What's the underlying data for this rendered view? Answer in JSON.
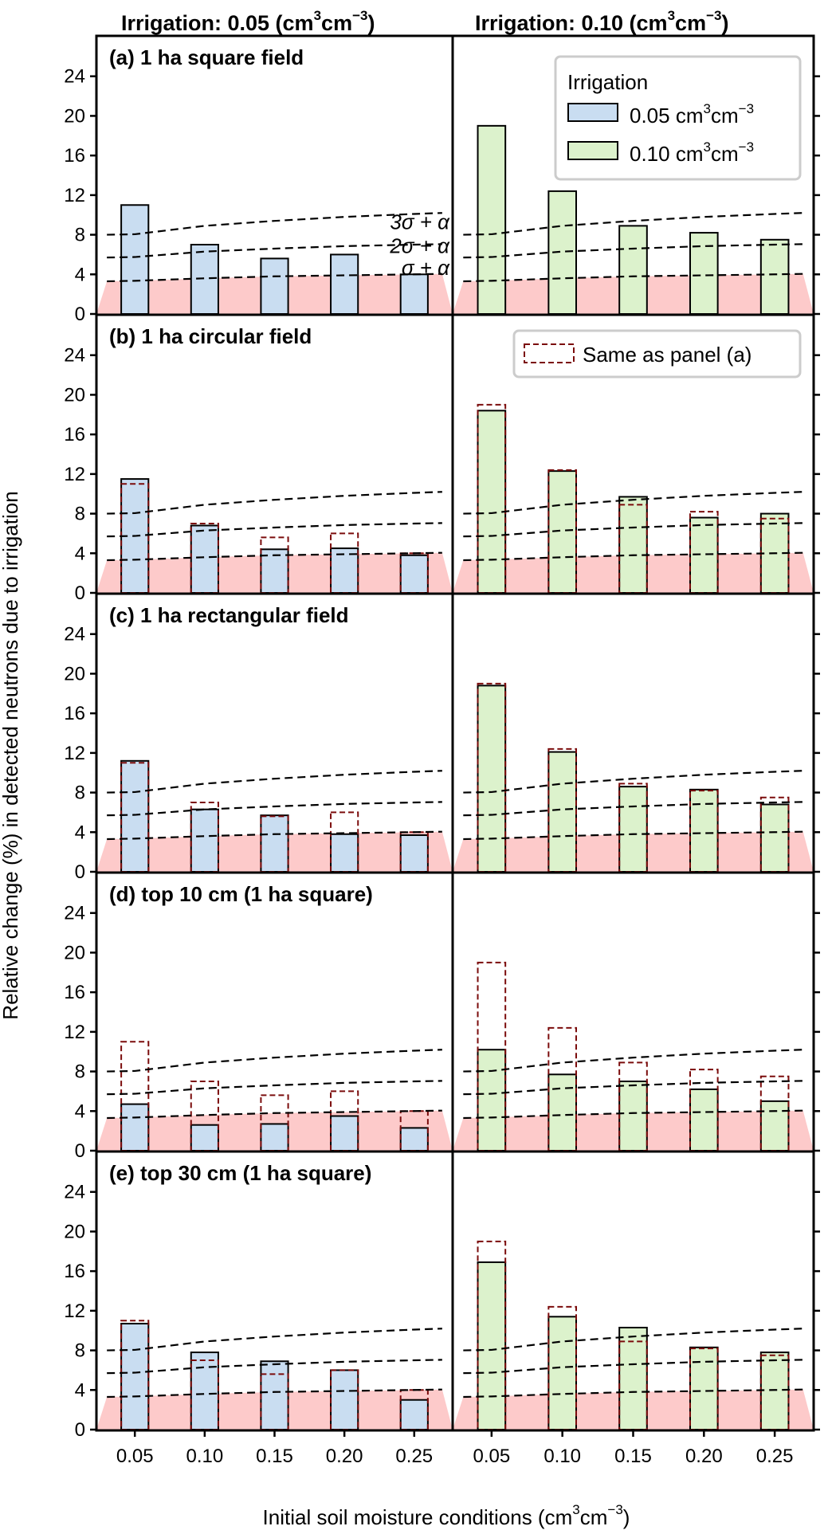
{
  "chart_data": {
    "type": "bar",
    "column_titles": [
      {
        "main": "Irrigation: 0.05 (cm",
        "sup1": "3",
        "mid": "cm",
        "sup2": "−3",
        "end": ")"
      },
      {
        "main": "Irrigation: 0.10 (cm",
        "sup1": "3",
        "mid": "cm",
        "sup2": "−3",
        "end": ")"
      }
    ],
    "xlabel": {
      "main": "Initial soil moisture conditions (cm",
      "sup1": "3",
      "mid": "cm",
      "sup2": "−3",
      "end": ")"
    },
    "ylabel": "Relative change (%) in detected neutrons due to irrigation",
    "categories": [
      "0.05",
      "0.10",
      "0.15",
      "0.20",
      "0.25"
    ],
    "ylim": [
      0,
      28
    ],
    "yticks": [
      0,
      4,
      8,
      12,
      16,
      20,
      24
    ],
    "colors": {
      "irr_005": "#c9ddf1",
      "irr_010": "#dcf2cc",
      "shade": "#fdcaca",
      "ref_outline": "#7b0c0c",
      "threshold": "#000000"
    },
    "thresholds": {
      "labels": [
        "3σ + α",
        "2σ + α",
        "σ + α"
      ],
      "x": [
        0.03,
        0.05,
        0.1,
        0.15,
        0.2,
        0.25,
        0.27
      ],
      "sigma_alpha": [
        3.3,
        3.35,
        3.6,
        3.8,
        3.9,
        4.0,
        4.05
      ],
      "two_sigma_alpha": [
        5.7,
        5.75,
        6.3,
        6.6,
        6.85,
        7.0,
        7.05
      ],
      "three_sigma_alpha": [
        8.0,
        8.05,
        8.9,
        9.4,
        9.8,
        10.1,
        10.2
      ]
    },
    "legend": {
      "title": "Irrigation",
      "entries": [
        {
          "label": "0.05 cm",
          "sup1": "3",
          "mid": "cm",
          "sup2": "−3",
          "series": "irr_005"
        },
        {
          "label": "0.10 cm",
          "sup1": "3",
          "mid": "cm",
          "sup2": "−3",
          "series": "irr_010"
        }
      ],
      "reference_label": "Same as panel (a)",
      "position": "top-right"
    },
    "panels": [
      {
        "title": "(a) 1 ha square field",
        "irr_005": [
          11.0,
          7.0,
          5.6,
          6.0,
          4.0
        ],
        "irr_010": [
          19.0,
          12.4,
          8.9,
          8.2,
          7.5
        ],
        "ref_005": null,
        "ref_010": null
      },
      {
        "title": "(b) 1 ha circular field",
        "irr_005": [
          11.5,
          6.8,
          4.4,
          4.5,
          3.8
        ],
        "irr_010": [
          18.4,
          12.3,
          9.7,
          7.6,
          8.0
        ],
        "ref_005": [
          11.0,
          7.0,
          5.6,
          6.0,
          4.0
        ],
        "ref_010": [
          19.0,
          12.4,
          8.9,
          8.2,
          7.5
        ]
      },
      {
        "title": "(c) 1 ha rectangular field",
        "irr_005": [
          11.2,
          6.3,
          5.7,
          3.8,
          3.7
        ],
        "irr_010": [
          18.8,
          12.1,
          8.6,
          8.3,
          6.8
        ],
        "ref_005": [
          11.0,
          7.0,
          5.6,
          6.0,
          4.0
        ],
        "ref_010": [
          19.0,
          12.4,
          8.9,
          8.2,
          7.5
        ]
      },
      {
        "title": "(d) top 10 cm (1 ha square)",
        "irr_005": [
          4.7,
          2.6,
          2.7,
          3.5,
          2.3
        ],
        "irr_010": [
          10.2,
          7.7,
          7.0,
          6.2,
          5.0
        ],
        "ref_005": [
          11.0,
          7.0,
          5.6,
          6.0,
          4.0
        ],
        "ref_010": [
          19.0,
          12.4,
          8.9,
          8.2,
          7.5
        ]
      },
      {
        "title": "(e) top 30 cm (1 ha square)",
        "irr_005": [
          10.7,
          7.8,
          6.9,
          6.0,
          3.0
        ],
        "irr_010": [
          16.9,
          11.4,
          10.3,
          8.3,
          7.8
        ],
        "ref_005": [
          11.0,
          7.0,
          5.6,
          6.0,
          4.0
        ],
        "ref_010": [
          19.0,
          12.4,
          8.9,
          8.2,
          7.5
        ]
      }
    ]
  }
}
